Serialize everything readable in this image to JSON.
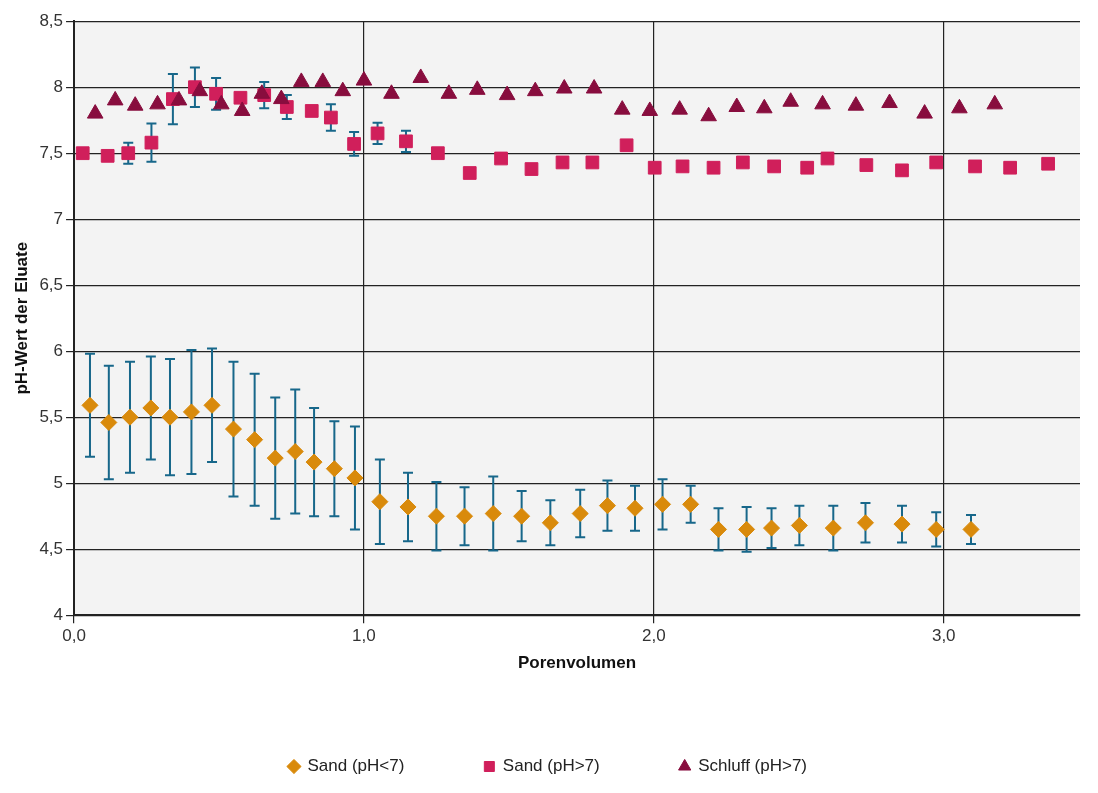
{
  "chart_data": {
    "type": "scatter",
    "xlabel": "Porenvolumen",
    "ylabel": "pH-Wert der Eluate",
    "xlim": [
      0,
      3.47
    ],
    "xticks": [
      {
        "value": 0,
        "label": "0,0"
      },
      {
        "value": 1,
        "label": "1,0"
      },
      {
        "value": 2,
        "label": "2,0"
      },
      {
        "value": 3,
        "label": "3,0"
      }
    ],
    "ylim": [
      4,
      8.5
    ],
    "yticks": [
      4,
      {
        "value": 4.5,
        "label": "4,5"
      },
      5,
      {
        "value": 5.5,
        "label": "5,5"
      },
      6,
      {
        "value": 6.5,
        "label": "6,5"
      },
      7,
      {
        "value": 7.5,
        "label": "7,5"
      },
      8,
      {
        "value": 8.5,
        "label": "8,5"
      }
    ],
    "grid": true,
    "legend": "bottom",
    "series": [
      {
        "name": "Sand (pH<7)",
        "color": "#d98a0b",
        "marker": "diamond",
        "x": [
          0.055,
          0.12,
          0.193,
          0.265,
          0.331,
          0.405,
          0.476,
          0.55,
          0.623,
          0.694,
          0.763,
          0.828,
          0.898,
          0.969,
          1.055,
          1.152,
          1.25,
          1.347,
          1.446,
          1.544,
          1.643,
          1.746,
          1.84,
          1.935,
          2.03,
          2.127,
          2.223,
          2.32,
          2.406,
          2.502,
          2.619,
          2.73,
          2.856,
          2.974,
          3.094
        ],
        "values": [
          5.59,
          5.46,
          5.5,
          5.57,
          5.5,
          5.54,
          5.59,
          5.41,
          5.33,
          5.19,
          5.24,
          5.16,
          5.11,
          5.04,
          4.86,
          4.82,
          4.75,
          4.75,
          4.77,
          4.75,
          4.7,
          4.77,
          4.83,
          4.81,
          4.84,
          4.84,
          4.65,
          4.65,
          4.66,
          4.68,
          4.66,
          4.7,
          4.69,
          4.65,
          4.65
        ],
        "errors": [
          0.39,
          0.43,
          0.42,
          0.39,
          0.44,
          0.47,
          0.43,
          0.51,
          0.5,
          0.46,
          0.47,
          0.41,
          0.36,
          0.39,
          0.32,
          0.26,
          0.26,
          0.22,
          0.28,
          0.19,
          0.17,
          0.18,
          0.19,
          0.17,
          0.19,
          0.14,
          0.16,
          0.17,
          0.15,
          0.15,
          0.17,
          0.15,
          0.14,
          0.13,
          0.11
        ]
      },
      {
        "name": "Sand (pH>7)",
        "color": "#d01f5b",
        "marker": "square",
        "x": [
          0.03,
          0.116,
          0.187,
          0.267,
          0.341,
          0.417,
          0.49,
          0.574,
          0.656,
          0.734,
          0.82,
          0.886,
          0.966,
          1.047,
          1.145,
          1.255,
          1.365,
          1.473,
          1.578,
          1.685,
          1.788,
          1.906,
          2.003,
          2.099,
          2.206,
          2.307,
          2.415,
          2.529,
          2.599,
          2.733,
          2.856,
          2.974,
          3.108,
          3.229,
          3.36
        ],
        "values": [
          7.5,
          7.48,
          7.5,
          7.58,
          7.91,
          8.0,
          7.95,
          7.92,
          7.94,
          7.85,
          7.82,
          7.77,
          7.57,
          7.65,
          7.59,
          7.5,
          7.35,
          7.46,
          7.38,
          7.43,
          7.43,
          7.56,
          7.39,
          7.4,
          7.39,
          7.43,
          7.4,
          7.39,
          7.46,
          7.41,
          7.37,
          7.43,
          7.4,
          7.39,
          7.42
        ],
        "errors": [
          null,
          null,
          0.08,
          0.145,
          0.19,
          0.15,
          0.12,
          null,
          0.1,
          0.09,
          null,
          0.1,
          0.09,
          0.08,
          0.08,
          null,
          null,
          null,
          null,
          null,
          null,
          null,
          null,
          null,
          null,
          null,
          null,
          null,
          null,
          null,
          null,
          null,
          null,
          null,
          null
        ]
      },
      {
        "name": "Schluff (pH>7)",
        "color": "#880d3e",
        "marker": "triangle",
        "x": [
          0.073,
          0.142,
          0.211,
          0.288,
          0.362,
          0.434,
          0.508,
          0.58,
          0.648,
          0.715,
          0.784,
          0.858,
          0.927,
          1.0,
          1.095,
          1.196,
          1.293,
          1.391,
          1.494,
          1.591,
          1.691,
          1.794,
          1.891,
          1.986,
          2.089,
          2.189,
          2.286,
          2.381,
          2.472,
          2.582,
          2.697,
          2.813,
          2.934,
          3.054,
          3.176
        ],
        "values": [
          7.8,
          7.9,
          7.86,
          7.87,
          7.9,
          7.97,
          7.87,
          7.82,
          7.95,
          7.91,
          8.04,
          8.04,
          7.97,
          8.05,
          7.95,
          8.07,
          7.95,
          7.98,
          7.94,
          7.97,
          7.99,
          7.99,
          7.83,
          7.82,
          7.83,
          7.78,
          7.85,
          7.84,
          7.89,
          7.87,
          7.86,
          7.88,
          7.8,
          7.84,
          7.87
        ]
      }
    ]
  }
}
